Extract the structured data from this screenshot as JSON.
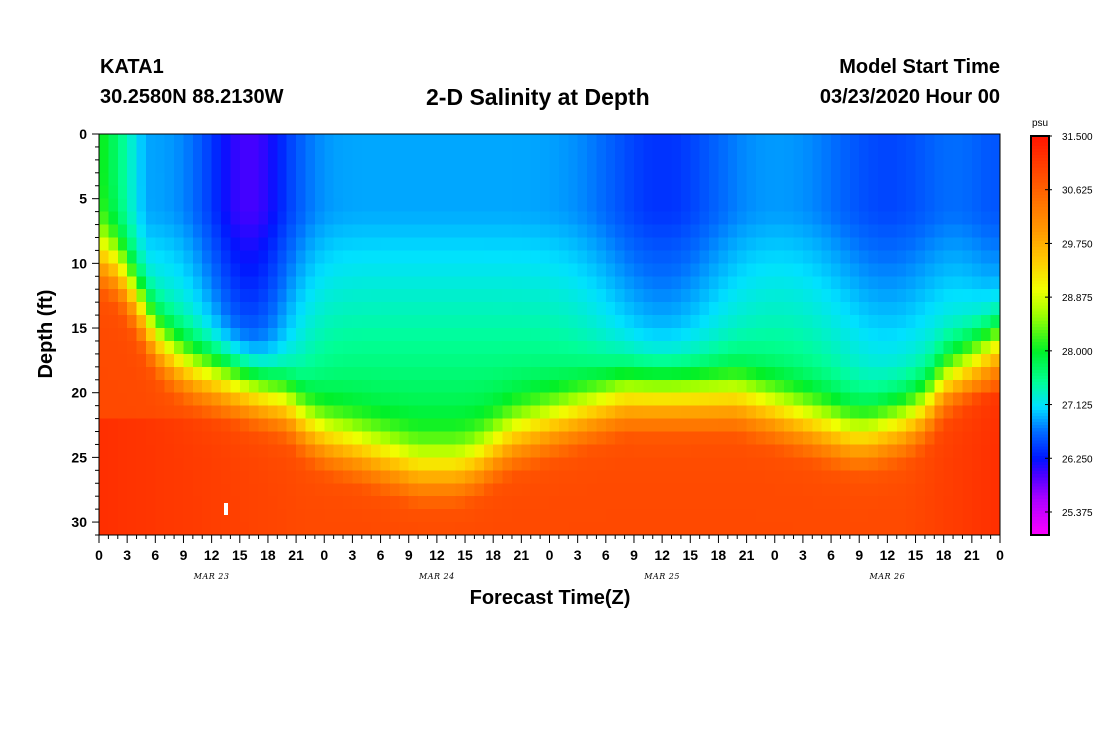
{
  "header": {
    "station": "KATA1",
    "location": "30.2580N 88.2130W",
    "title": "2-D Salinity at Depth",
    "model_label": "Model Start Time",
    "model_time": "03/23/2020 Hour 00"
  },
  "chart_data": {
    "type": "heatmap",
    "title": "2-D Salinity at Depth",
    "xlabel": "Forecast Time(Z)",
    "ylabel": "Depth (ft)",
    "x_range_hours": [
      0,
      96
    ],
    "y_range_ft": [
      0,
      31
    ],
    "y_ticks": [
      0,
      5,
      10,
      15,
      20,
      25,
      30
    ],
    "x_tick_hours": [
      0,
      3,
      6,
      9,
      12,
      15,
      18,
      21,
      24,
      27,
      30,
      33,
      36,
      39,
      42,
      45,
      48,
      51,
      54,
      57,
      60,
      63,
      66,
      69,
      72,
      75,
      78,
      81,
      84,
      87,
      90,
      93,
      96
    ],
    "x_tick_labels": [
      "0",
      "3",
      "6",
      "9",
      "12",
      "15",
      "18",
      "21",
      "0",
      "3",
      "6",
      "9",
      "12",
      "15",
      "18",
      "21",
      "0",
      "3",
      "6",
      "9",
      "12",
      "15",
      "18",
      "21",
      "0",
      "3",
      "6",
      "9",
      "12",
      "15",
      "18",
      "21",
      "0"
    ],
    "day_labels": [
      {
        "text": "MAR 23",
        "hour": 12
      },
      {
        "text": "MAR 24",
        "hour": 36
      },
      {
        "text": "MAR 25",
        "hour": 60
      },
      {
        "text": "MAR 26",
        "hour": 84
      }
    ],
    "colorbar": {
      "unit": "psu",
      "min": 25.0,
      "max": 31.5,
      "labels": [
        "31.500",
        "30.625",
        "29.750",
        "28.875",
        "28.000",
        "27.125",
        "26.250",
        "25.375"
      ],
      "label_values": [
        31.5,
        30.625,
        29.75,
        28.875,
        28.0,
        27.125,
        26.25,
        25.375
      ]
    },
    "halocline_depth_ft": {
      "hours": [
        0,
        2,
        4,
        6,
        8,
        10,
        12,
        14,
        16,
        18,
        20,
        22,
        24,
        26,
        28,
        30,
        32,
        34,
        36,
        38,
        40,
        42,
        44,
        46,
        48,
        50,
        52,
        54,
        56,
        58,
        60,
        62,
        64,
        66,
        68,
        70,
        72,
        74,
        76,
        78,
        80,
        82,
        84,
        86,
        88,
        90,
        92,
        94,
        96
      ],
      "values": [
        8.5,
        9.5,
        12,
        15,
        16.5,
        17.5,
        18,
        18.5,
        19,
        19.5,
        20,
        21.5,
        22.5,
        23,
        23.5,
        24,
        24.5,
        25,
        25,
        25,
        24.5,
        23.5,
        22.5,
        22,
        21.5,
        21,
        20.5,
        20,
        19.5,
        19.5,
        19.5,
        19.5,
        19.5,
        19.5,
        19.5,
        20,
        20.5,
        21,
        21.5,
        22,
        22.5,
        22.5,
        22,
        21.5,
        20.5,
        18.5,
        17.5,
        16.5,
        15.5
      ]
    },
    "bottom_max_salinity_psu": 31.2,
    "surface_min_salinity_psu": 25.3
  }
}
